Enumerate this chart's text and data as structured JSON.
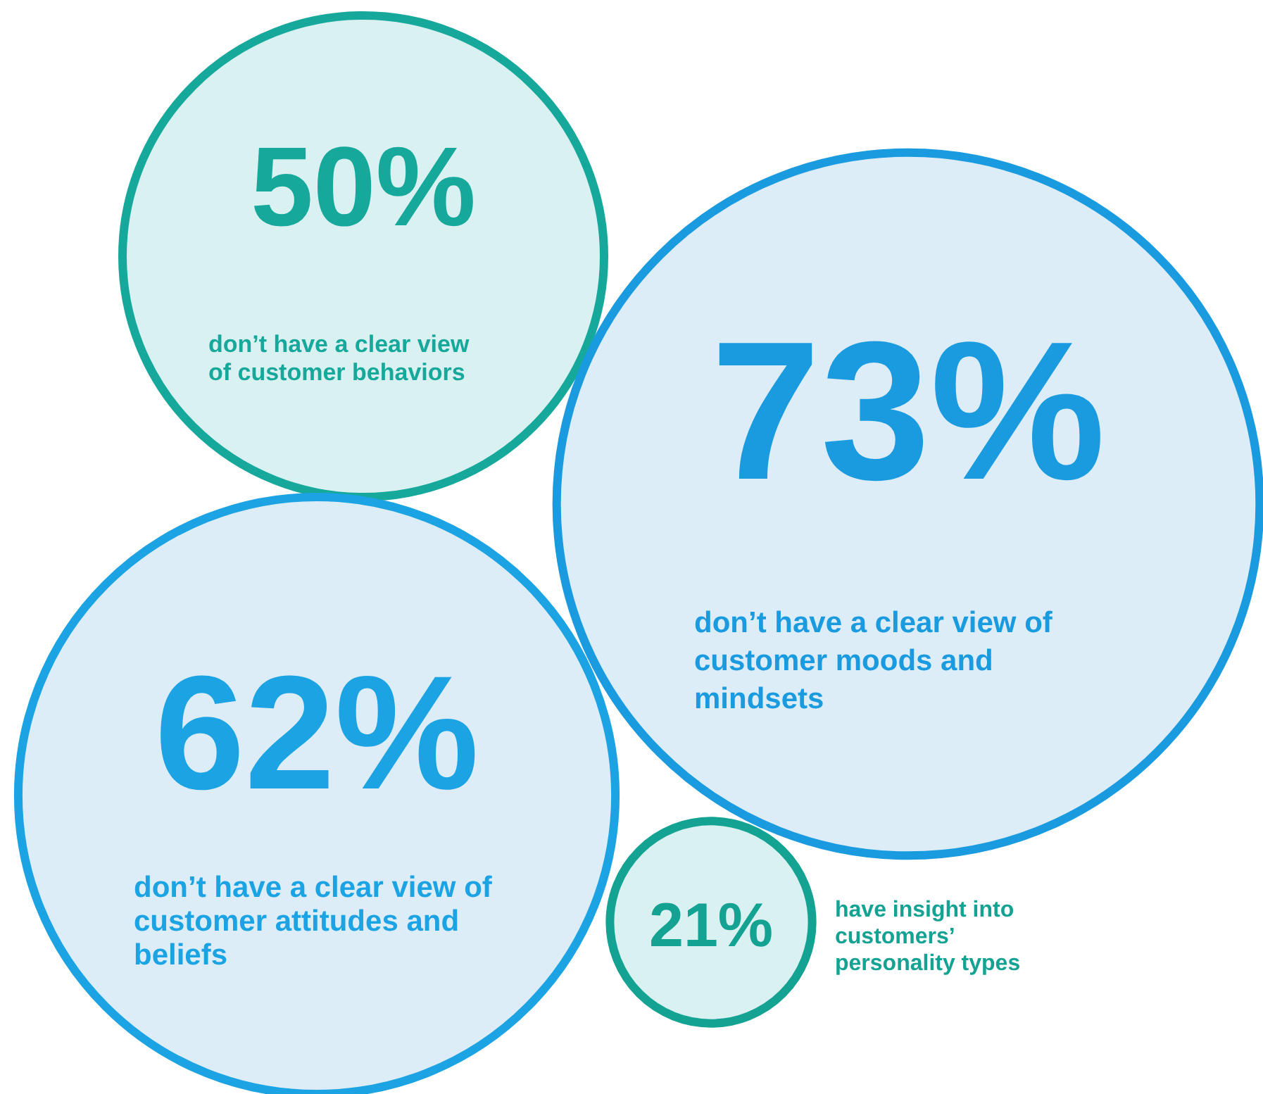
{
  "chart_data": {
    "type": "other",
    "categories": [
      "don’t have a clear view of customer behaviors",
      "don’t have a clear view of customer moods and mindsets",
      "don’t have a clear view of customer attitudes and beliefs",
      "have insight into customers’ personality types"
    ],
    "values": [
      50,
      73,
      62,
      21
    ],
    "value_labels": [
      "50%",
      "73%",
      "62%",
      "21%"
    ],
    "colors": [
      "#15a89b",
      "#1a9be0",
      "#1ba3e3",
      "#14a293"
    ]
  }
}
